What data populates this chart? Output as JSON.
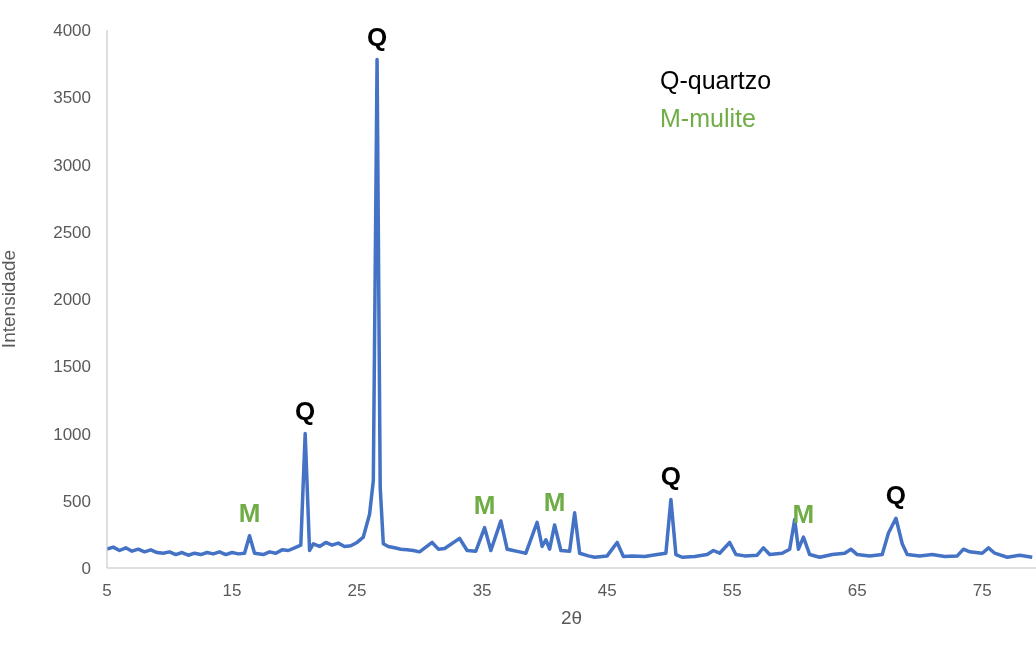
{
  "chart_data": {
    "type": "line",
    "xlabel": "2θ",
    "ylabel": "Intensidade",
    "color": "#4472c4",
    "marker": "none",
    "line_style": "solid",
    "grid": false,
    "legend": false,
    "xlim": [
      5,
      79.3
    ],
    "xticks": [
      5,
      15,
      25,
      35,
      45,
      55,
      65,
      75
    ],
    "ylim": [
      0,
      4000
    ],
    "yticks": [
      0,
      500,
      1000,
      1500,
      2000,
      2500,
      3000,
      3500,
      4000
    ],
    "x": [
      5,
      5.5,
      6,
      6.5,
      7,
      7.5,
      8,
      8.5,
      9,
      9.5,
      10,
      10.5,
      11,
      11.5,
      12,
      12.5,
      13,
      13.5,
      14,
      14.5,
      15,
      15.5,
      16,
      16.4,
      16.8,
      17.5,
      18,
      18.5,
      19,
      19.5,
      20,
      20.5,
      20.85,
      21.2,
      21.5,
      22,
      22.5,
      23,
      23.5,
      24,
      24.5,
      25,
      25.5,
      26,
      26.3,
      26.6,
      26.85,
      27.1,
      27.5,
      28,
      28.5,
      29,
      29.5,
      30,
      31,
      31.5,
      32,
      33.2,
      33.8,
      34.5,
      35.2,
      35.7,
      36.5,
      37,
      38,
      38.5,
      39.4,
      39.8,
      40.1,
      40.4,
      40.8,
      41.3,
      42,
      42.4,
      42.8,
      43.5,
      44,
      45,
      45.8,
      46.3,
      47,
      48,
      49,
      49.7,
      50.1,
      50.5,
      51,
      52,
      53,
      53.5,
      54,
      54.8,
      55.3,
      56,
      57,
      57.5,
      58,
      59,
      59.6,
      60,
      60.3,
      60.7,
      61.2,
      62,
      63,
      64,
      64.5,
      65,
      66,
      67,
      67.5,
      68.1,
      68.6,
      69,
      70,
      71,
      72,
      73,
      73.5,
      74,
      75,
      75.5,
      76,
      77,
      78,
      79
    ],
    "values": [
      140,
      155,
      130,
      150,
      125,
      140,
      120,
      135,
      115,
      110,
      120,
      100,
      115,
      95,
      110,
      100,
      115,
      105,
      120,
      100,
      115,
      105,
      110,
      240,
      110,
      100,
      120,
      110,
      135,
      130,
      150,
      170,
      1000,
      130,
      180,
      160,
      190,
      170,
      185,
      160,
      165,
      190,
      230,
      400,
      650,
      3780,
      600,
      180,
      160,
      150,
      140,
      135,
      130,
      120,
      190,
      140,
      145,
      220,
      130,
      125,
      300,
      130,
      350,
      140,
      120,
      110,
      340,
      160,
      210,
      140,
      320,
      130,
      125,
      410,
      110,
      90,
      80,
      90,
      190,
      85,
      90,
      85,
      100,
      110,
      510,
      100,
      80,
      85,
      100,
      130,
      110,
      190,
      100,
      90,
      95,
      150,
      100,
      110,
      140,
      360,
      140,
      230,
      100,
      80,
      100,
      110,
      140,
      100,
      90,
      100,
      260,
      370,
      180,
      100,
      90,
      100,
      85,
      90,
      140,
      120,
      110,
      150,
      110,
      80,
      95,
      80
    ],
    "annotations": [
      "Q-quartzo",
      "M-mulite",
      {
        "text": "M",
        "x": 16.4,
        "y": 240
      },
      {
        "text": "Q",
        "x": 20.85,
        "y": 1000
      },
      {
        "text": "Q",
        "x": 26.6,
        "y": 3780
      },
      {
        "text": "M",
        "x": 35.2,
        "y": 300
      },
      {
        "text": "M",
        "x": 40.8,
        "y": 320
      },
      {
        "text": "Q",
        "x": 50.1,
        "y": 510
      },
      {
        "text": "M",
        "x": 60.7,
        "y": 230
      },
      {
        "text": "Q",
        "x": 68.1,
        "y": 370
      }
    ]
  }
}
